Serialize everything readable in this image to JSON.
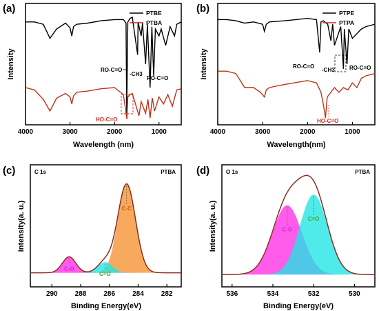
{
  "colors": {
    "black_line": "#000000",
    "red_line": "#c0311a",
    "xps_envelope": "#8b2d1f",
    "xps_cc": "#f5922f",
    "xps_co": "#ff2ee6",
    "xps_ceo": "#1ee6e6",
    "annotation_red": "#c0311a",
    "annotation_green": "#3aa83a",
    "annotation_magenta": "#d81cd8",
    "annotation_orange": "#e05a0c"
  },
  "chart_data": [
    {
      "panel": "(a)",
      "type": "line",
      "xlabel": "Wavelength (nm)",
      "ylabel": "Intensity",
      "xlim": [
        4000,
        500
      ],
      "xticks": [
        4000,
        3000,
        2000,
        1000
      ],
      "legend_position": "top-right",
      "series": [
        {
          "name": "PTBE",
          "color": "#000000",
          "x": [
            4000,
            3800,
            3600,
            3450,
            3300,
            3100,
            3000,
            2960,
            2920,
            2850,
            2600,
            2300,
            2000,
            1800,
            1740,
            1725,
            1700,
            1650,
            1600,
            1480,
            1470,
            1400,
            1370,
            1300,
            1260,
            1200,
            1160,
            1120,
            1080,
            1000,
            950,
            850,
            750,
            650,
            600,
            500
          ],
          "y": [
            0.86,
            0.86,
            0.84,
            0.72,
            0.8,
            0.85,
            0.81,
            0.74,
            0.82,
            0.84,
            0.85,
            0.87,
            0.88,
            0.88,
            0.85,
            0.08,
            0.86,
            0.89,
            0.9,
            0.58,
            0.86,
            0.74,
            0.85,
            0.5,
            0.84,
            0.3,
            0.82,
            0.4,
            0.8,
            0.74,
            0.8,
            0.66,
            0.82,
            0.74,
            0.84,
            0.86
          ]
        },
        {
          "name": "PTBA",
          "color": "#c0311a",
          "x": [
            4000,
            3800,
            3600,
            3450,
            3300,
            3100,
            3000,
            2960,
            2920,
            2850,
            2600,
            2300,
            2000,
            1800,
            1720,
            1700,
            1650,
            1600,
            1450,
            1400,
            1300,
            1250,
            1200,
            1150,
            1100,
            1000,
            900,
            800,
            700,
            600,
            500
          ],
          "y": [
            0.3,
            0.28,
            0.2,
            0.1,
            0.21,
            0.25,
            0.22,
            0.16,
            0.23,
            0.26,
            0.27,
            0.29,
            0.3,
            0.24,
            0.03,
            0.22,
            0.24,
            0.25,
            0.06,
            0.18,
            0.08,
            0.2,
            0.04,
            0.21,
            0.1,
            0.22,
            0.16,
            0.24,
            0.14,
            0.28,
            0.29
          ]
        }
      ],
      "annotations": [
        "RO-C=O",
        "-CH3",
        "RO-C=O",
        "HO-C=O"
      ]
    },
    {
      "panel": "(b)",
      "type": "line",
      "xlabel": "Wavelength(nm)",
      "ylabel": "Intensity",
      "xlim": [
        4000,
        500
      ],
      "xticks": [
        4000,
        3000,
        2000,
        1000
      ],
      "legend_position": "top-right",
      "series": [
        {
          "name": "PTPE",
          "color": "#000000",
          "x": [
            4000,
            3800,
            3600,
            3400,
            3200,
            3000,
            2960,
            2920,
            2850,
            2500,
            2000,
            1800,
            1730,
            1700,
            1650,
            1550,
            1480,
            1440,
            1400,
            1260,
            1200,
            1180,
            1120,
            1080,
            1000,
            900,
            800,
            700,
            500
          ],
          "y": [
            0.88,
            0.88,
            0.87,
            0.85,
            0.86,
            0.84,
            0.78,
            0.84,
            0.86,
            0.87,
            0.89,
            0.88,
            0.6,
            0.86,
            0.87,
            0.84,
            0.7,
            0.84,
            0.66,
            0.82,
            0.46,
            0.8,
            0.5,
            0.8,
            0.72,
            0.76,
            0.8,
            0.82,
            0.84
          ]
        },
        {
          "name": "PTPA",
          "color": "#c0311a",
          "x": [
            4000,
            3800,
            3600,
            3500,
            3400,
            3200,
            3050,
            2960,
            2920,
            2850,
            2600,
            2300,
            2000,
            1800,
            1700,
            1640,
            1600,
            1560,
            1400,
            1300,
            1200,
            1100,
            1000,
            900,
            800,
            700,
            500
          ],
          "y": [
            0.44,
            0.44,
            0.42,
            0.36,
            0.3,
            0.3,
            0.26,
            0.22,
            0.28,
            0.3,
            0.32,
            0.34,
            0.36,
            0.34,
            0.26,
            0.14,
            0.04,
            0.22,
            0.3,
            0.26,
            0.3,
            0.28,
            0.34,
            0.3,
            0.38,
            0.4,
            0.42
          ]
        }
      ],
      "annotations": [
        "RO-C=O",
        "-CH3",
        "RO-C=O",
        "HO-C=O"
      ]
    },
    {
      "panel": "(c)",
      "type": "area",
      "title": "C 1s",
      "label": "PTBA",
      "xlabel": "Binding Energy(eV)",
      "ylabel": "Intensity(a. u.)",
      "xlim": [
        291.5,
        281
      ],
      "xticks": [
        290,
        288,
        286,
        284,
        282
      ],
      "peaks": [
        {
          "name": "C-C",
          "center": 284.8,
          "height": 1.0,
          "fwhm": 1.45,
          "color": "#f5922f"
        },
        {
          "name": "C-O",
          "center": 288.8,
          "height": 0.18,
          "fwhm": 1.1,
          "color": "#ff2ee6"
        },
        {
          "name": "C=O",
          "center": 286.3,
          "height": 0.12,
          "fwhm": 1.2,
          "color": "#1ee6e6"
        }
      ],
      "baseline": 0.05
    },
    {
      "panel": "(d)",
      "type": "area",
      "title": "O 1s",
      "label": "PTBA",
      "xlabel": "Binding Energy(eV)",
      "ylabel": "Intensity(a. u.)",
      "xlim": [
        536.5,
        529
      ],
      "xticks": [
        536,
        534,
        532,
        530
      ],
      "peaks": [
        {
          "name": "C-O",
          "center": 533.3,
          "height": 0.78,
          "fwhm": 1.7,
          "color": "#ff2ee6"
        },
        {
          "name": "C=O",
          "center": 532.0,
          "height": 0.9,
          "fwhm": 1.6,
          "color": "#1ee6e6"
        }
      ],
      "baseline": 0.03
    }
  ]
}
